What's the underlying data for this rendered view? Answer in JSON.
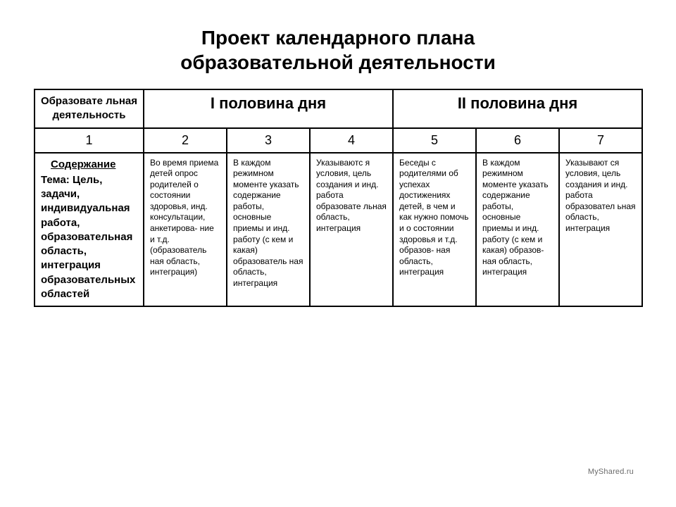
{
  "title_line1": "Проект календарного плана",
  "title_line2": "образовательной деятельности",
  "table": {
    "header": {
      "activity": "Образовате льная деятельность",
      "first_half": "I половина дня",
      "second_half": "II половина дня"
    },
    "numbers": [
      "1",
      "2",
      "3",
      "4",
      "5",
      "6",
      "7"
    ],
    "content_row": {
      "label_heading": "Содержание",
      "label_rest": "Тема:\nЦель, задачи, индивидуальная работа, образовательная область, интеграция образовательных областей",
      "cells": [
        "Во время приема детей опрос родителей о состоянии здоровья, инд. консультации, анкетирова- ние и т.д. (образователь ная область, интеграция)",
        "В каждом режимном моменте указать содержание работы, основные приемы и инд. работу (с кем и какая) образователь ная область, интеграция",
        "Указываютс я условия, цель создания и инд. работа образовате льная область, интеграция",
        "Беседы с родителями об успехах достижениях детей, в чем и как нужно помочь и о состоянии здоровья и т.д. образов- ная область, интеграция",
        "В каждом режимном моменте указать содержание работы, основные приемы и инд. работу (с кем и какая) образов-ная область, интеграция",
        "Указывают ся условия, цель создания и инд. работа образовател ьная область, интеграция"
      ]
    }
  },
  "watermark": "MyShared.ru"
}
